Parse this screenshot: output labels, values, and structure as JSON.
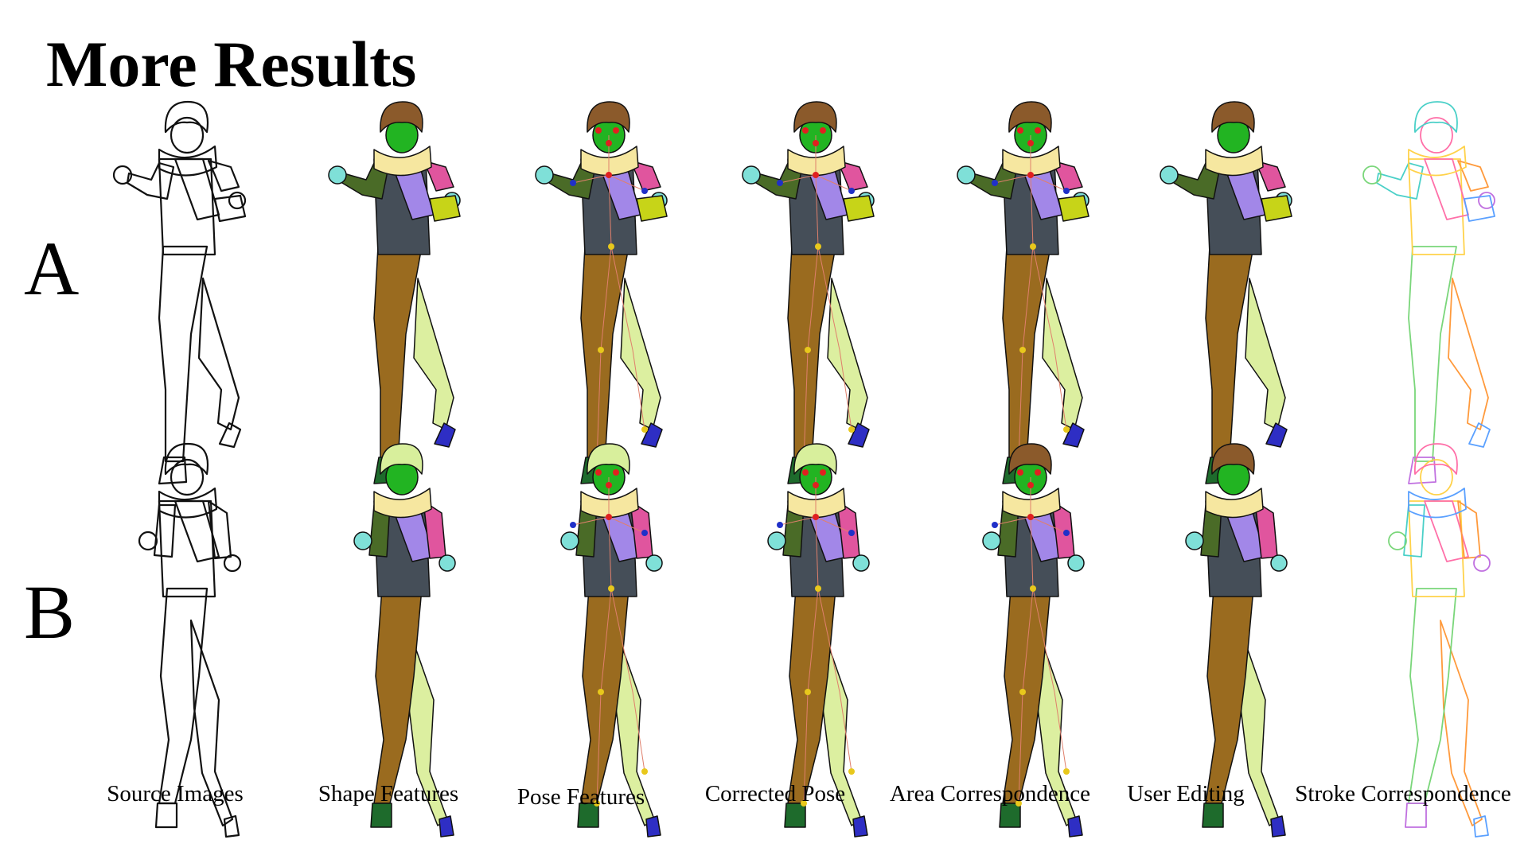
{
  "title": "More Results",
  "rows": [
    {
      "label": "A",
      "hair": "#8b5a2b",
      "hair_pose": "#8b5a2b"
    },
    {
      "label": "B",
      "hair": "#d8ef9c",
      "hair_pose": "#8b5a2b"
    }
  ],
  "columns": [
    {
      "caption": "Source Images",
      "style": "sketch"
    },
    {
      "caption": "Shape Features",
      "style": "color"
    },
    {
      "caption": "Pose Features",
      "style": "pose"
    },
    {
      "caption": "Corrected Pose",
      "style": "pose"
    },
    {
      "caption": "Area Correspondence",
      "style": "pose"
    },
    {
      "caption": "User Editing",
      "style": "color"
    },
    {
      "caption": "Stroke Correspondence",
      "style": "stroke"
    }
  ],
  "palette": {
    "face": "#22b422",
    "scarf": "#f6e7a0",
    "shirt": "#454e58",
    "pants": "#9a6b1f",
    "left_sleeve": "#4a6b27",
    "right_sleeve": "#e0559e",
    "vest": "#a287e8",
    "hand": "#7fe0d8",
    "bag": "#c7d418",
    "shoe_left": "#1e6b2c",
    "shoe_right": "#2e2ec4",
    "back_leg": "#dcefa0",
    "joint_red": "#e02020",
    "joint_yellow": "#e8c81c",
    "joint_blue": "#2030c8",
    "bone": "#e0806c"
  }
}
